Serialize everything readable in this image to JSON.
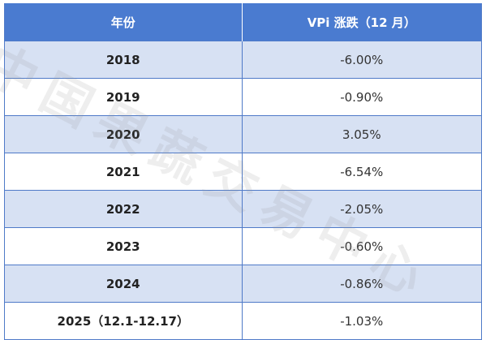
{
  "table": {
    "headers": [
      "年份",
      "VPi 涨跌（12 月）"
    ],
    "rows": [
      {
        "year": "2018",
        "value": "-6.00%"
      },
      {
        "year": "2019",
        "value": "-0.90%"
      },
      {
        "year": "2020",
        "value": "3.05%"
      },
      {
        "year": "2021",
        "value": "-6.54%"
      },
      {
        "year": "2022",
        "value": "-2.05%"
      },
      {
        "year": "2023",
        "value": "-0.60%"
      },
      {
        "year": "2024",
        "value": "-0.86%"
      },
      {
        "year": "2025（12.1-12.17）",
        "value": "-1.03%"
      }
    ]
  },
  "watermark": {
    "text": "中国果蔬交易中心"
  },
  "colors": {
    "header_bg": "#4a7bd0",
    "band_bg": "#d7e1f3",
    "border": "#4f7ac8"
  }
}
